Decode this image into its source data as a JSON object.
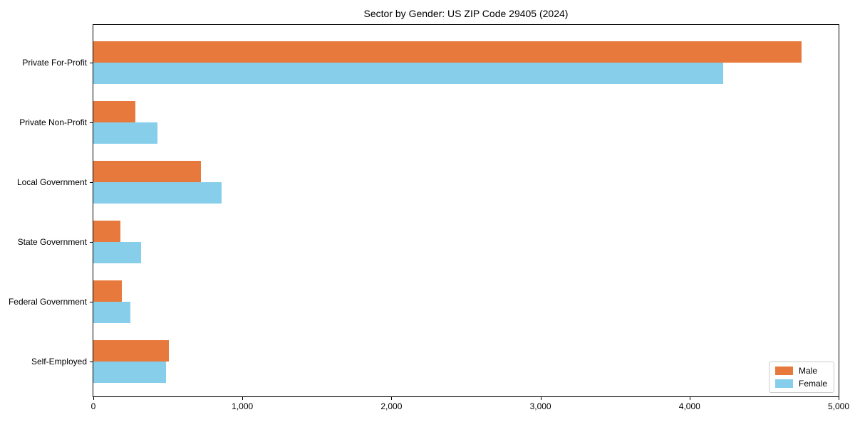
{
  "chart_data": {
    "type": "bar",
    "orientation": "horizontal",
    "title": "Sector by Gender: US ZIP Code 29405 (2024)",
    "categories": [
      "Private For-Profit",
      "Private Non-Profit",
      "Local Government",
      "State Government",
      "Federal Government",
      "Self-Employed"
    ],
    "series": [
      {
        "name": "Male",
        "color": "#E8793C",
        "values": [
          4750,
          280,
          720,
          180,
          190,
          505
        ]
      },
      {
        "name": "Female",
        "color": "#87CEEB",
        "values": [
          4225,
          430,
          860,
          320,
          250,
          485
        ]
      }
    ],
    "xlabel": "",
    "ylabel": "",
    "xlim": [
      0,
      5000
    ],
    "x_ticks": [
      0,
      1000,
      2000,
      3000,
      4000,
      5000
    ],
    "x_tick_labels": [
      "0",
      "1,000",
      "2,000",
      "3,000",
      "4,000",
      "5,000"
    ],
    "grid": false,
    "legend_position": "lower right",
    "background_color": "#ffffff",
    "axis_color": "#000000"
  }
}
